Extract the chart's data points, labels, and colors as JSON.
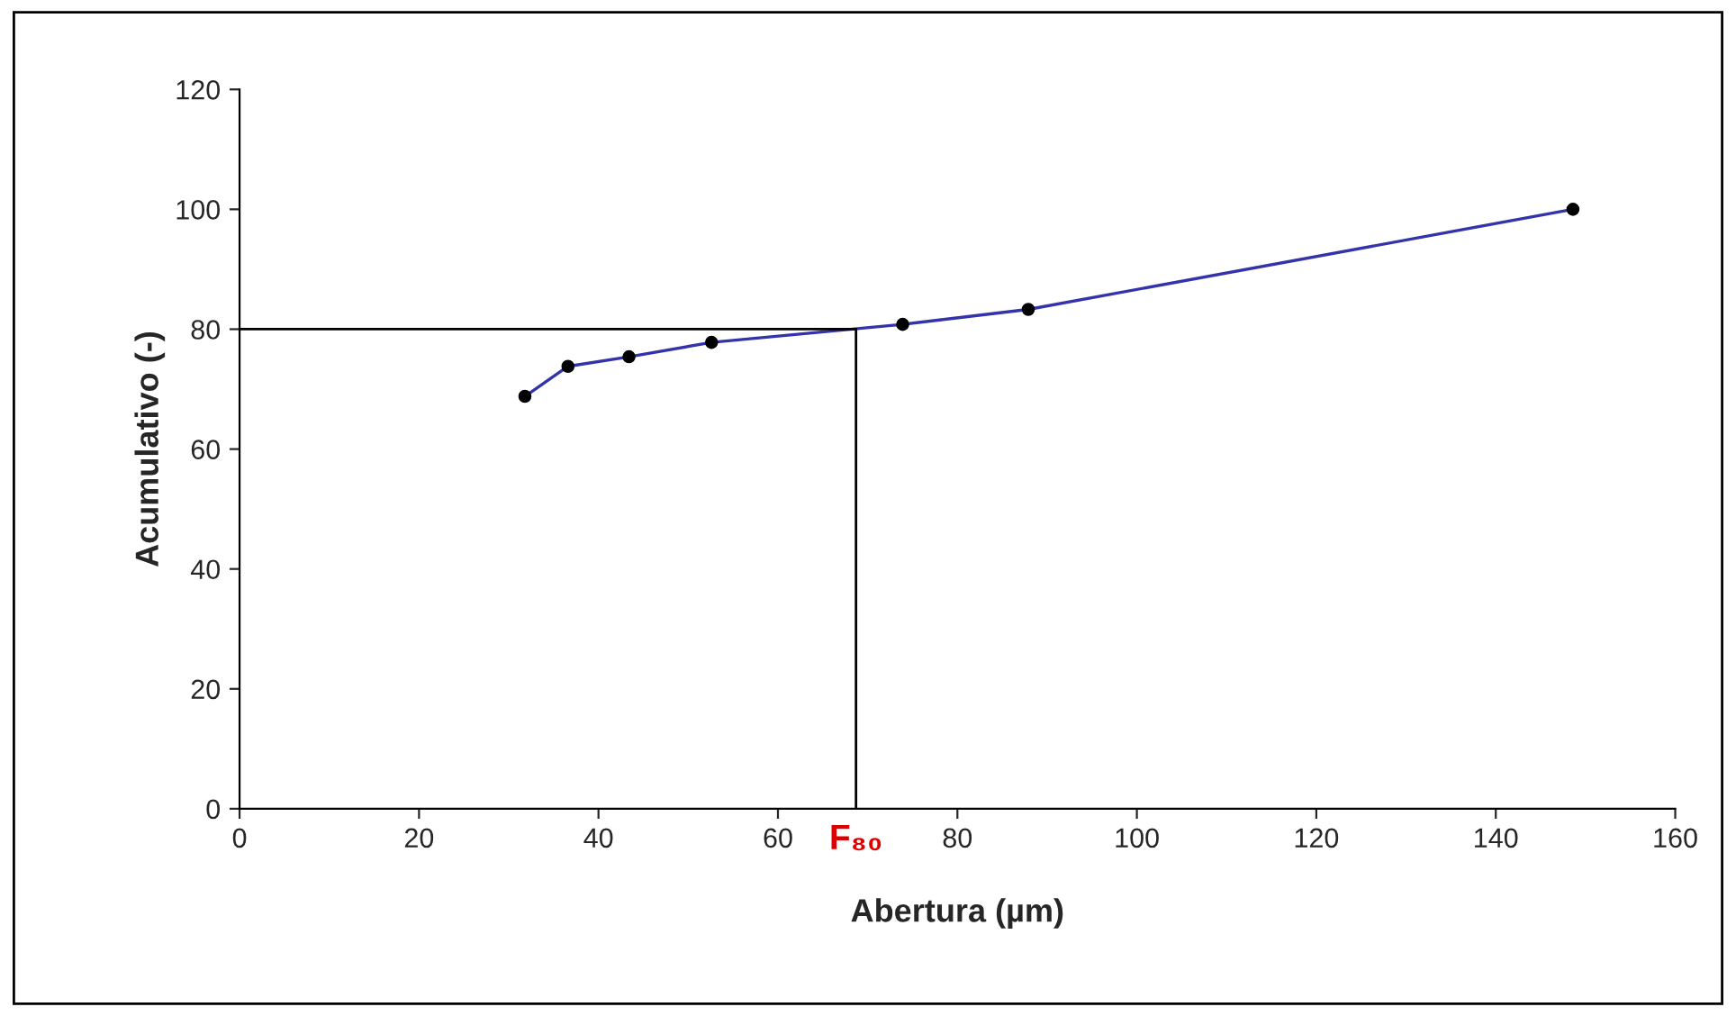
{
  "chart_data": {
    "type": "line",
    "xlabel": "Abertura (µm)",
    "ylabel": "Acumulativo (-)",
    "x": [
      31.8,
      36.6,
      43.4,
      52.6,
      73.9,
      87.9,
      148.6
    ],
    "series": [
      {
        "color": "#3333aa",
        "values": [
          68.8,
          73.8,
          75.4,
          77.8,
          80.8,
          83.3,
          100
        ]
      }
    ],
    "marker": "circle",
    "xlim": [
      0,
      160
    ],
    "xticks": [
      0,
      20,
      40,
      60,
      80,
      100,
      120,
      140,
      160
    ],
    "ylim": [
      0,
      120
    ],
    "yticks": [
      0,
      20,
      40,
      60,
      80,
      100,
      120
    ],
    "grid": false,
    "legend": false,
    "ref_lines": [
      {
        "axis": "y",
        "value": 80,
        "color": "#000000"
      },
      {
        "axis": "x",
        "value": 68.7,
        "label": "F₈₀",
        "color": "#000000"
      }
    ]
  }
}
